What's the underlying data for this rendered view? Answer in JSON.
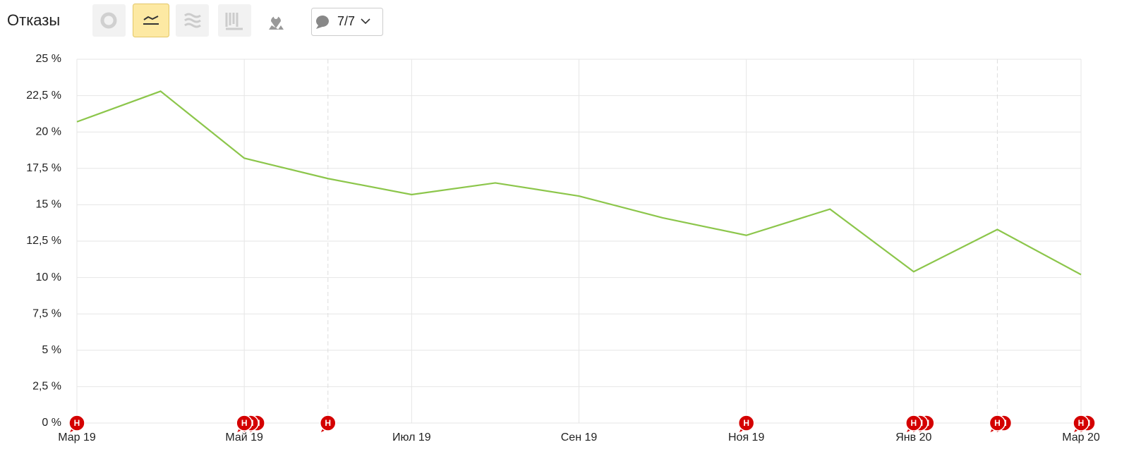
{
  "header": {
    "title": "Отказы",
    "annotations_button": "7/7"
  },
  "chart_data": {
    "type": "line",
    "categories": [
      "Мар 19",
      null,
      "Май 19",
      null,
      "Июл 19",
      null,
      "Сен 19",
      null,
      "Ноя 19",
      null,
      "Янв 20",
      null,
      "Мар 20"
    ],
    "values": [
      20.7,
      22.8,
      18.2,
      16.8,
      15.7,
      16.5,
      15.6,
      14.1,
      12.9,
      14.7,
      10.4,
      13.3,
      10.2
    ],
    "color": "#8cc64b",
    "ylim": [
      0,
      25
    ],
    "yticks": [
      {
        "value": 0,
        "label": "0 %"
      },
      {
        "value": 2.5,
        "label": "2,5 %"
      },
      {
        "value": 5,
        "label": "5 %"
      },
      {
        "value": 7.5,
        "label": "7,5 %"
      },
      {
        "value": 10,
        "label": "10 %"
      },
      {
        "value": 12.5,
        "label": "12,5 %"
      },
      {
        "value": 15,
        "label": "15 %"
      },
      {
        "value": 17.5,
        "label": "17,5 %"
      },
      {
        "value": 20,
        "label": "20 %"
      },
      {
        "value": 22.5,
        "label": "22,5 %"
      },
      {
        "value": 25,
        "label": "25 %"
      }
    ],
    "grid": true,
    "annotations": [
      [
        "Н"
      ],
      null,
      [
        "Н",
        "Н",
        "Н"
      ],
      [
        "Н"
      ],
      null,
      null,
      null,
      null,
      [
        "Н"
      ],
      null,
      [
        "Н",
        "Н",
        "Н"
      ],
      [
        "Н",
        "Н"
      ],
      [
        "Н",
        "Н"
      ]
    ]
  }
}
